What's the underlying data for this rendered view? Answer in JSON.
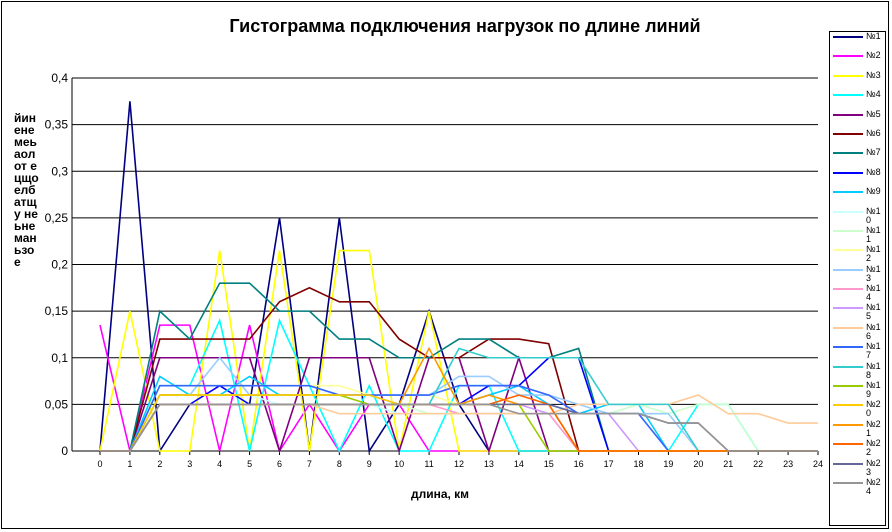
{
  "chart_data": {
    "type": "line",
    "title": "Гистограмма подключения нагрузок по длине линий",
    "xlabel": "длина, км",
    "ylabel": "йиненемеьаол от ецщоелбатщу неьнеманьзое",
    "ylim": [
      0,
      0.4
    ],
    "y_ticks": [
      "0",
      "0,05",
      "0,1",
      "0,15",
      "0,2",
      "0,25",
      "0,3",
      "0,35",
      "0,4"
    ],
    "grid": true,
    "legend_position": "right",
    "x_categories": [
      "0",
      "1",
      "2",
      "3",
      "4",
      "5",
      "6",
      "7",
      "8",
      "9",
      "10",
      "11",
      "12",
      "13",
      "14",
      "15",
      "16",
      "17",
      "18",
      "19",
      "20",
      "21",
      "22",
      "23",
      "24"
    ],
    "series": [
      {
        "name": "№1",
        "color": "#000080",
        "values": [
          0,
          0.375,
          0,
          0.05,
          0.05,
          0.05,
          0.25,
          0,
          0.25,
          0,
          0.05,
          0.15,
          0.05,
          0,
          0,
          0,
          0,
          0,
          0,
          0,
          0,
          0,
          0,
          0,
          0
        ]
      },
      {
        "name": "№2",
        "color": "#FF00FF",
        "values": [
          0.135,
          0,
          0.135,
          0.135,
          0,
          0.135,
          0,
          0.05,
          0,
          0.05,
          0.05,
          0,
          0,
          0,
          0,
          0,
          0,
          0,
          0,
          0,
          0,
          0,
          0,
          0,
          0
        ]
      },
      {
        "name": "№3",
        "color": "#FFFF00",
        "values": [
          0,
          0.15,
          0,
          0,
          0.215,
          0,
          0.215,
          0,
          0.215,
          0.215,
          0,
          0.15,
          0,
          0,
          0,
          0,
          0,
          0,
          0,
          0,
          0,
          0,
          0,
          0,
          0
        ]
      },
      {
        "name": "№4",
        "color": "#00FFFF",
        "values": [
          0,
          0,
          0.07,
          0.07,
          0.14,
          0,
          0.14,
          0.07,
          0,
          0.07,
          0,
          0,
          0.07,
          0.07,
          0,
          0,
          0,
          0,
          0,
          0,
          0.05,
          0.05,
          0,
          0,
          0
        ]
      },
      {
        "name": "№5",
        "color": "#800080",
        "values": [
          0,
          0,
          0.1,
          0.1,
          0.1,
          0.1,
          0,
          0.1,
          0.1,
          0.1,
          0,
          0.1,
          0.1,
          0,
          0.1,
          0,
          0,
          0,
          0,
          0,
          0,
          0,
          0,
          0,
          0
        ]
      },
      {
        "name": "№6",
        "color": "#800000",
        "values": [
          0,
          0,
          0.12,
          0.12,
          0.12,
          0.12,
          0.16,
          0.175,
          0.16,
          0.16,
          0.12,
          0.1,
          0.1,
          0.12,
          0.12,
          0.115,
          0,
          0,
          0,
          0,
          0,
          0,
          0,
          0,
          0
        ]
      },
      {
        "name": "№7",
        "color": "#008080",
        "values": [
          0,
          0,
          0.15,
          0.12,
          0.18,
          0.18,
          0.15,
          0.15,
          0.12,
          0.12,
          0.1,
          0.1,
          0.12,
          0.12,
          0.1,
          0.1,
          0.11,
          0,
          0,
          0,
          0,
          0,
          0,
          0,
          0
        ]
      },
      {
        "name": "№8",
        "color": "#0000FF",
        "values": [
          0,
          0,
          0.05,
          0.05,
          0.07,
          0.05,
          0.05,
          0.05,
          0.05,
          0.05,
          0.05,
          0.05,
          0.05,
          0.07,
          0.07,
          0.1,
          0.1,
          0,
          0,
          0,
          0,
          0,
          0,
          0,
          0
        ]
      },
      {
        "name": "№9",
        "color": "#00CCFF",
        "values": [
          0,
          0,
          0.08,
          0.06,
          0.06,
          0.08,
          0.06,
          0.06,
          0.06,
          0.06,
          0.05,
          0.05,
          0.05,
          0.06,
          0.07,
          0.05,
          0.04,
          0.05,
          0.05,
          0,
          0,
          0,
          0,
          0,
          0
        ]
      },
      {
        "name": "№10",
        "color": "#CCFFFF",
        "values": [
          0,
          0,
          0.06,
          0.06,
          0.06,
          0.06,
          0.05,
          0.05,
          0.05,
          0.05,
          0.04,
          0.04,
          0.04,
          0.04,
          0.04,
          0.04,
          0,
          0,
          0,
          0,
          0,
          0,
          0,
          0,
          0
        ]
      },
      {
        "name": "№11",
        "color": "#CCFFCC",
        "values": [
          0,
          0,
          0.05,
          0.05,
          0.05,
          0.05,
          0.05,
          0.05,
          0.05,
          0.05,
          0.05,
          0.04,
          0.04,
          0.04,
          0.04,
          0.04,
          0.04,
          0.04,
          0.05,
          0.04,
          0.05,
          0.05,
          0,
          0,
          0
        ]
      },
      {
        "name": "№12",
        "color": "#FFFF99",
        "values": [
          0,
          0,
          0.07,
          0.07,
          0.07,
          0.07,
          0.07,
          0.07,
          0.07,
          0.06,
          0.06,
          0.06,
          0.05,
          0.05,
          0.05,
          0,
          0,
          0,
          0,
          0,
          0,
          0,
          0,
          0,
          0
        ]
      },
      {
        "name": "№13",
        "color": "#99CCFF",
        "values": [
          0,
          0,
          0.06,
          0.06,
          0.1,
          0.06,
          0.06,
          0.06,
          0.06,
          0.06,
          0.06,
          0.06,
          0.08,
          0.08,
          0.06,
          0.06,
          0.05,
          0.04,
          0.04,
          0.04,
          0,
          0,
          0,
          0,
          0
        ]
      },
      {
        "name": "№14",
        "color": "#FF99CC",
        "values": [
          0,
          0,
          0.05,
          0.05,
          0.05,
          0.05,
          0.05,
          0.05,
          0.05,
          0.05,
          0.05,
          0.05,
          0.04,
          0.04,
          0.04,
          0.04,
          0,
          0,
          0,
          0,
          0,
          0,
          0,
          0,
          0
        ]
      },
      {
        "name": "№15",
        "color": "#CC99FF",
        "values": [
          0,
          0,
          0.06,
          0.06,
          0.06,
          0.06,
          0.06,
          0.06,
          0.06,
          0.06,
          0.05,
          0.05,
          0.05,
          0.05,
          0.05,
          0.04,
          0.04,
          0.04,
          0,
          0,
          0,
          0,
          0,
          0,
          0
        ]
      },
      {
        "name": "№16",
        "color": "#FFCC99",
        "values": [
          0,
          0,
          0.05,
          0.05,
          0.05,
          0.05,
          0.05,
          0.05,
          0.04,
          0.04,
          0.04,
          0.04,
          0.04,
          0.04,
          0.04,
          0.04,
          0.05,
          0.05,
          0.05,
          0.05,
          0.06,
          0.04,
          0.04,
          0.03,
          0.03
        ]
      },
      {
        "name": "№17",
        "color": "#3366FF",
        "values": [
          0,
          0,
          0.07,
          0.07,
          0.07,
          0.07,
          0.07,
          0.07,
          0.06,
          0.06,
          0.06,
          0.06,
          0.07,
          0.07,
          0.07,
          0.06,
          0.04,
          0.04,
          0.04,
          0,
          0,
          0,
          0,
          0,
          0
        ]
      },
      {
        "name": "№18",
        "color": "#33CCCC",
        "values": [
          0,
          0,
          0.05,
          0.05,
          0.05,
          0.05,
          0.05,
          0.05,
          0.05,
          0.05,
          0.05,
          0.05,
          0.11,
          0.1,
          0.1,
          0.1,
          0.1,
          0.05,
          0.05,
          0.05,
          0,
          0,
          0,
          0,
          0
        ]
      },
      {
        "name": "№19",
        "color": "#99CC00",
        "values": [
          0,
          0,
          0.06,
          0.06,
          0.06,
          0.06,
          0.06,
          0.06,
          0.06,
          0.05,
          0.05,
          0.05,
          0.05,
          0.05,
          0.05,
          0,
          0,
          0,
          0,
          0,
          0,
          0,
          0,
          0,
          0
        ]
      },
      {
        "name": "№20",
        "color": "#FFCC00",
        "values": [
          0,
          0,
          0.06,
          0.06,
          0.06,
          0.06,
          0.06,
          0.06,
          0.06,
          0.06,
          0.05,
          0.05,
          0.05,
          0.05,
          0.05,
          0.05,
          0,
          0,
          0,
          0,
          0,
          0,
          0,
          0,
          0
        ]
      },
      {
        "name": "№21",
        "color": "#FF9900",
        "values": [
          0,
          0,
          0.05,
          0.05,
          0.05,
          0.05,
          0.05,
          0.05,
          0.05,
          0.05,
          0.05,
          0.11,
          0.05,
          0.06,
          0.05,
          0.05,
          0,
          0,
          0,
          0,
          0,
          0,
          0,
          0,
          0
        ]
      },
      {
        "name": "№22",
        "color": "#FF6600",
        "values": [
          0,
          0,
          0.05,
          0.05,
          0.05,
          0.05,
          0.05,
          0.05,
          0.05,
          0.05,
          0.05,
          0.05,
          0.05,
          0.05,
          0.06,
          0.05,
          0,
          0,
          0,
          0,
          0,
          0,
          0,
          0,
          0
        ]
      },
      {
        "name": "№23",
        "color": "#666699",
        "values": [
          0,
          0,
          0.05,
          0.05,
          0.05,
          0.05,
          0.05,
          0.05,
          0.05,
          0.05,
          0.05,
          0.05,
          0.05,
          0.05,
          0.05,
          0.05,
          0.04,
          0.04,
          0.04,
          0.03,
          0.03,
          0,
          0,
          0,
          0
        ]
      },
      {
        "name": "№24",
        "color": "#969696",
        "values": [
          0,
          0,
          0.05,
          0.05,
          0.05,
          0.05,
          0.05,
          0.05,
          0.05,
          0.05,
          0.05,
          0.05,
          0.05,
          0.05,
          0.04,
          0.04,
          0.04,
          0.04,
          0.04,
          0.03,
          0.03,
          0,
          0,
          0,
          0
        ]
      }
    ]
  }
}
